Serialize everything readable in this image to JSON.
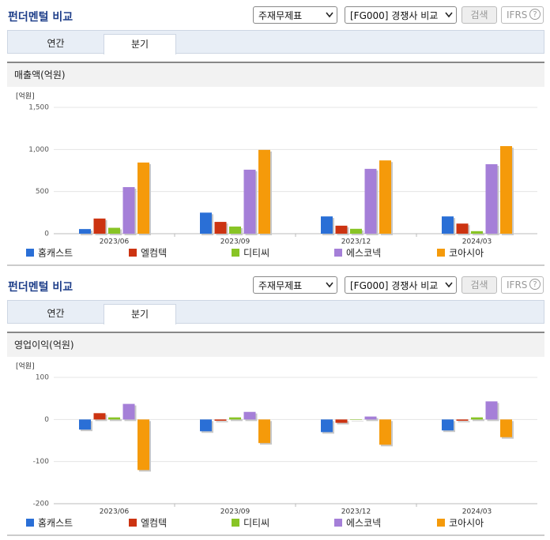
{
  "panels": [
    {
      "title": "펀더멘털 비교",
      "statement": "주재무제표",
      "compare": "[FG000] 경쟁사 비교",
      "search": "검색",
      "ifrs": "IFRS",
      "help": "?",
      "tabs": [
        "연간",
        "분기"
      ]
    },
    {
      "title": "펀더멘털 비교",
      "statement": "주재무제표",
      "compare": "[FG000] 경쟁사 비교",
      "search": "검색",
      "ifrs": "IFRS",
      "help": "?",
      "tabs": [
        "연간",
        "분기"
      ]
    }
  ],
  "chart_data": [
    {
      "type": "bar",
      "title": "매출액(억원)",
      "y_label": "[억원]",
      "categories": [
        "2023/06",
        "2023/09",
        "2023/12",
        "2024/03"
      ],
      "series": [
        {
          "name": "홈캐스트",
          "color": "#2a6fd6",
          "values": [
            55,
            250,
            205,
            205
          ]
        },
        {
          "name": "엘컴텍",
          "color": "#cc3311",
          "values": [
            180,
            140,
            95,
            120
          ]
        },
        {
          "name": "디티씨",
          "color": "#88c425",
          "values": [
            70,
            85,
            58,
            30
          ]
        },
        {
          "name": "에스코넥",
          "color": "#a57fd8",
          "values": [
            553,
            760,
            770,
            825
          ]
        },
        {
          "name": "코아시아",
          "color": "#f59a0a",
          "values": [
            845,
            995,
            870,
            1040
          ]
        }
      ],
      "ylim": [
        0,
        1500
      ],
      "yticks": [
        0,
        500,
        {
          "value": 1000,
          "label": "1,000"
        },
        {
          "value": 1500,
          "label": "1,500"
        }
      ],
      "grid": true
    },
    {
      "type": "bar",
      "title": "영업이익(억원)",
      "y_label": "[억원]",
      "categories": [
        "2023/06",
        "2023/09",
        "2023/12",
        "2024/03"
      ],
      "series": [
        {
          "name": "홈캐스트",
          "color": "#2a6fd6",
          "values": [
            -24,
            -28,
            -30,
            -26
          ]
        },
        {
          "name": "엘컴텍",
          "color": "#cc3311",
          "values": [
            15,
            -3,
            -8,
            -3
          ]
        },
        {
          "name": "디티씨",
          "color": "#88c425",
          "values": [
            5,
            5,
            -1,
            5
          ]
        },
        {
          "name": "에스코넥",
          "color": "#a57fd8",
          "values": [
            37,
            18,
            7,
            43
          ]
        },
        {
          "name": "코아시아",
          "color": "#f59a0a",
          "values": [
            -120,
            -56,
            -60,
            -42
          ]
        }
      ],
      "ylim": [
        -200,
        100
      ],
      "yticks": [
        -200,
        -100,
        0,
        100
      ],
      "grid": true
    }
  ]
}
